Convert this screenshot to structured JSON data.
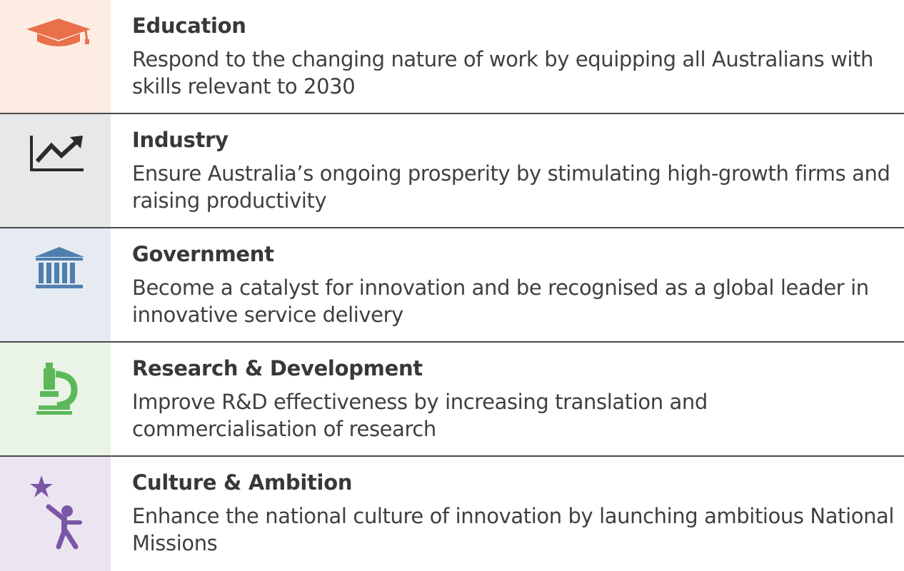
{
  "rows": [
    {
      "title": "Education",
      "description": "Respond to the changing nature of work by equipping all Australians with skills relevant to 2030",
      "icon": "graduation-cap-icon",
      "icon_color": "#e8704a",
      "background": "#fcece2"
    },
    {
      "title": "Industry",
      "description": "Ensure Australia’s ongoing prosperity by stimulating high-growth firms and raising productivity",
      "icon": "growth-chart-icon",
      "icon_color": "#2b2b2b",
      "background": "#e7e8ea"
    },
    {
      "title": "Government",
      "description": "Become a catalyst for innovation and be recognised as a global leader in innovative service delivery",
      "icon": "government-building-icon",
      "icon_color": "#4f7fae",
      "background": "#e6ebf2"
    },
    {
      "title": "Research & Development",
      "description": "Improve R&D effectiveness by increasing translation and commercialisation of research",
      "icon": "microscope-icon",
      "icon_color": "#5cb858",
      "background": "#e9f4e6"
    },
    {
      "title": "Culture & Ambition",
      "description": "Enhance the national culture of innovation by launching ambitious National Missions",
      "icon": "reaching-star-icon",
      "icon_color": "#7b56a5",
      "background": "#ebe5f2"
    }
  ]
}
